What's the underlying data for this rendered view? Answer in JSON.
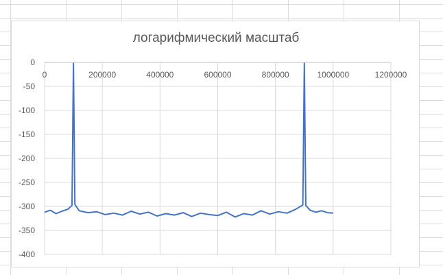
{
  "chart_data": {
    "type": "line",
    "title": "логарифмический масштаб",
    "xlabel": "",
    "ylabel": "",
    "xlim": [
      0,
      1200000
    ],
    "ylim": [
      -400,
      0
    ],
    "x_ticks": [
      "0",
      "200000",
      "400000",
      "600000",
      "800000",
      "1000000",
      "1200000"
    ],
    "y_ticks": [
      "0",
      "-50",
      "-100",
      "-150",
      "-200",
      "-250",
      "-300",
      "-350",
      "-400"
    ],
    "x_axis_position": "top",
    "grid": true,
    "legend": "none",
    "series": [
      {
        "color": "#4472c4",
        "x": [
          0,
          20000,
          40000,
          60000,
          80000,
          95000,
          100000,
          105000,
          120000,
          150000,
          180000,
          210000,
          240000,
          270000,
          300000,
          330000,
          360000,
          390000,
          420000,
          450000,
          480000,
          510000,
          540000,
          570000,
          600000,
          630000,
          660000,
          690000,
          720000,
          750000,
          780000,
          810000,
          840000,
          870000,
          895000,
          900000,
          905000,
          920000,
          940000,
          960000,
          980000,
          1000000
        ],
        "y": [
          -312,
          -308,
          -315,
          -310,
          -306,
          -298,
          -2,
          -296,
          -309,
          -313,
          -311,
          -317,
          -314,
          -318,
          -310,
          -316,
          -312,
          -320,
          -315,
          -318,
          -313,
          -321,
          -314,
          -317,
          -319,
          -312,
          -322,
          -315,
          -318,
          -309,
          -316,
          -311,
          -314,
          -306,
          -297,
          -2,
          -298,
          -308,
          -312,
          -309,
          -313,
          -314
        ]
      }
    ]
  }
}
